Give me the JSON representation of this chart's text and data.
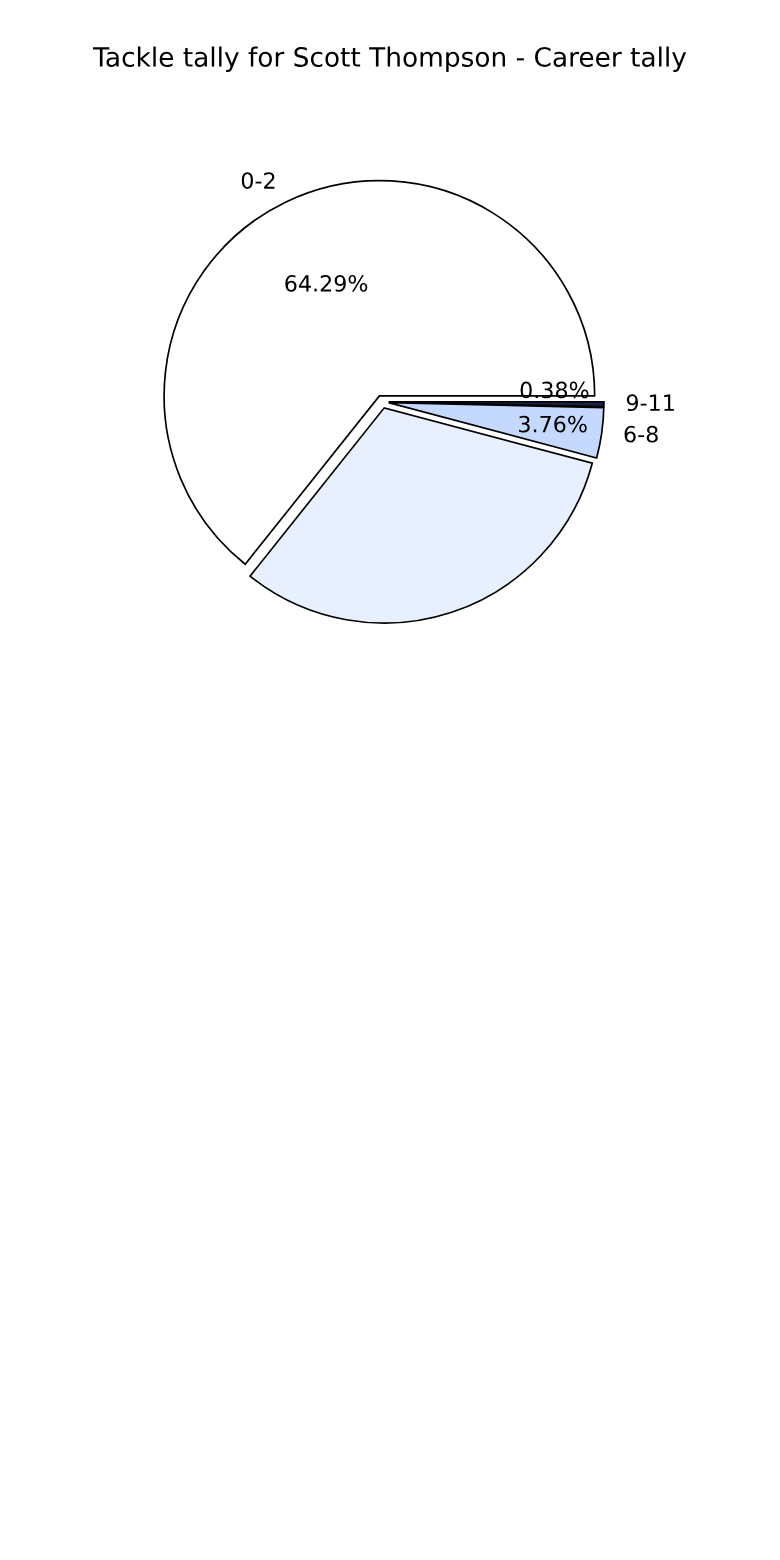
{
  "chart_data": {
    "type": "pie",
    "title": "Tackle tally for Scott Thompson - Career tally",
    "categories": [
      "0-2",
      null,
      "6-8",
      "9-11"
    ],
    "values": [
      64.29,
      31.57,
      3.76,
      0.38
    ],
    "value_labels": [
      "64.29%",
      null,
      "3.76%",
      "0.38%"
    ],
    "colors": [
      "#ffffff",
      "#e8f0ff",
      "#c5d9ff",
      "#1a2040"
    ],
    "legend": false
  }
}
